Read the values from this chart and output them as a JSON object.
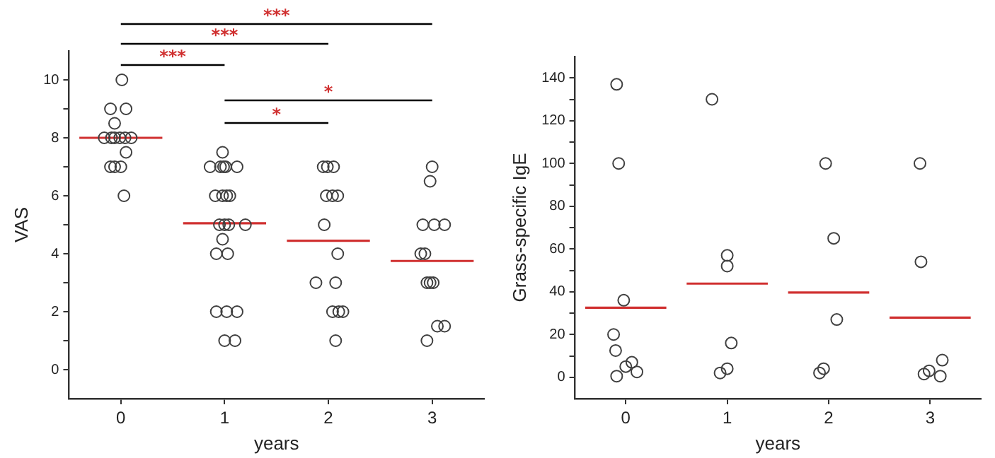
{
  "chart_data": [
    {
      "type": "scatter",
      "xlabel": "years",
      "ylabel": "VAS",
      "xlim": [
        -0.5,
        3.5
      ],
      "xticks": [
        0,
        1,
        2,
        3
      ],
      "ylim": [
        -1,
        11
      ],
      "yticks": [
        0,
        {
          "value": 1,
          "label": null
        },
        2,
        {
          "value": 3,
          "label": null
        },
        4,
        {
          "value": 5,
          "label": null
        },
        6,
        {
          "value": 7,
          "label": null
        },
        8,
        {
          "value": 9,
          "label": null
        },
        10
      ],
      "grid": false,
      "legend": false,
      "series": [
        {
          "color": "#404040",
          "marker": "circle",
          "x": [
            0.01,
            -0.1,
            0.05,
            -0.06,
            -0.16,
            -0.09,
            -0.06,
            -0.01,
            0.04,
            0.1,
            0.05,
            -0.1,
            -0.06,
            0.0,
            0.03,
            0.98,
            0.86,
            0.96,
            0.99,
            1.01,
            1.12,
            0.91,
            0.98,
            1.02,
            1.05,
            0.95,
            1.0,
            1.04,
            1.2,
            0.98,
            0.92,
            1.03,
            0.92,
            1.02,
            1.12,
            1.0,
            1.1,
            1.95,
            1.99,
            2.05,
            1.98,
            2.04,
            2.09,
            1.96,
            2.09,
            1.88,
            2.07,
            2.04,
            2.1,
            2.14,
            2.07,
            3.0,
            2.98,
            2.91,
            3.02,
            3.12,
            2.89,
            2.93,
            2.95,
            2.98,
            3.01,
            3.05,
            3.12,
            2.95
          ],
          "values": [
            10,
            9,
            9,
            8.5,
            8,
            8,
            8,
            8,
            8,
            8,
            7.5,
            7,
            7,
            7,
            6,
            7.5,
            7,
            7,
            7,
            7,
            7,
            6,
            6,
            6,
            6,
            5,
            5,
            5,
            5,
            4.5,
            4,
            4,
            2,
            2,
            2,
            1,
            1,
            7,
            7,
            7,
            6,
            6,
            6,
            5,
            4,
            3,
            3,
            2,
            2,
            2,
            1,
            7,
            6.5,
            5,
            5,
            5,
            4,
            4,
            3,
            3,
            3,
            1.5,
            1.5,
            1
          ]
        },
        {
          "type": "line",
          "color": "#d03030",
          "x": [
            -0.4,
            0.4
          ],
          "values": [
            8,
            8
          ]
        },
        {
          "type": "line",
          "color": "#d03030",
          "x": [
            0.6,
            1.4
          ],
          "values": [
            5.05,
            5.05
          ]
        },
        {
          "type": "line",
          "color": "#d03030",
          "x": [
            1.6,
            2.4
          ],
          "values": [
            4.45,
            4.45
          ]
        },
        {
          "type": "line",
          "color": "#d03030",
          "x": [
            2.6,
            3.4
          ],
          "values": [
            3.75,
            3.75
          ]
        }
      ],
      "annotations": [
        "***",
        "***",
        "***",
        "*",
        "*"
      ]
    },
    {
      "type": "scatter",
      "xlabel": "years",
      "ylabel": "Grass-specific IgE",
      "xlim": [
        -0.5,
        3.5
      ],
      "xticks": [
        0,
        1,
        2,
        3
      ],
      "ylim": [
        -10,
        150
      ],
      "yticks": [
        0,
        {
          "value": 10,
          "label": null
        },
        20,
        {
          "value": 30,
          "label": null
        },
        40,
        {
          "value": 50,
          "label": null
        },
        60,
        {
          "value": 70,
          "label": null
        },
        80,
        {
          "value": 90,
          "label": null
        },
        100,
        {
          "value": 110,
          "label": null
        },
        120,
        {
          "value": 130,
          "label": null
        },
        140
      ],
      "grid": false,
      "legend": false,
      "series": [
        {
          "color": "#404040",
          "marker": "circle",
          "x": [
            -0.09,
            -0.07,
            -0.02,
            -0.12,
            -0.1,
            0.06,
            0.0,
            0.11,
            -0.09,
            0.85,
            1.0,
            1.0,
            1.04,
            1.0,
            0.93,
            1.97,
            2.05,
            2.08,
            1.95,
            1.91,
            2.9,
            2.91,
            3.12,
            2.99,
            2.94,
            3.1
          ],
          "values": [
            137,
            100,
            36,
            20,
            12.5,
            7,
            5,
            2.5,
            0.5,
            130,
            57,
            52,
            16,
            4,
            2,
            100,
            65,
            27,
            4,
            2,
            100,
            54,
            8,
            3,
            1.5,
            0.5
          ]
        },
        {
          "type": "line",
          "color": "#d03030",
          "x": [
            -0.4,
            0.4
          ],
          "values": [
            32.5,
            32.5
          ]
        },
        {
          "type": "line",
          "color": "#d03030",
          "x": [
            0.6,
            1.4
          ],
          "values": [
            43.8,
            43.8
          ]
        },
        {
          "type": "line",
          "color": "#d03030",
          "x": [
            1.6,
            2.4
          ],
          "values": [
            39.6,
            39.6
          ]
        },
        {
          "type": "line",
          "color": "#d03030",
          "x": [
            2.6,
            3.4
          ],
          "values": [
            27.9,
            27.9
          ]
        }
      ]
    }
  ]
}
